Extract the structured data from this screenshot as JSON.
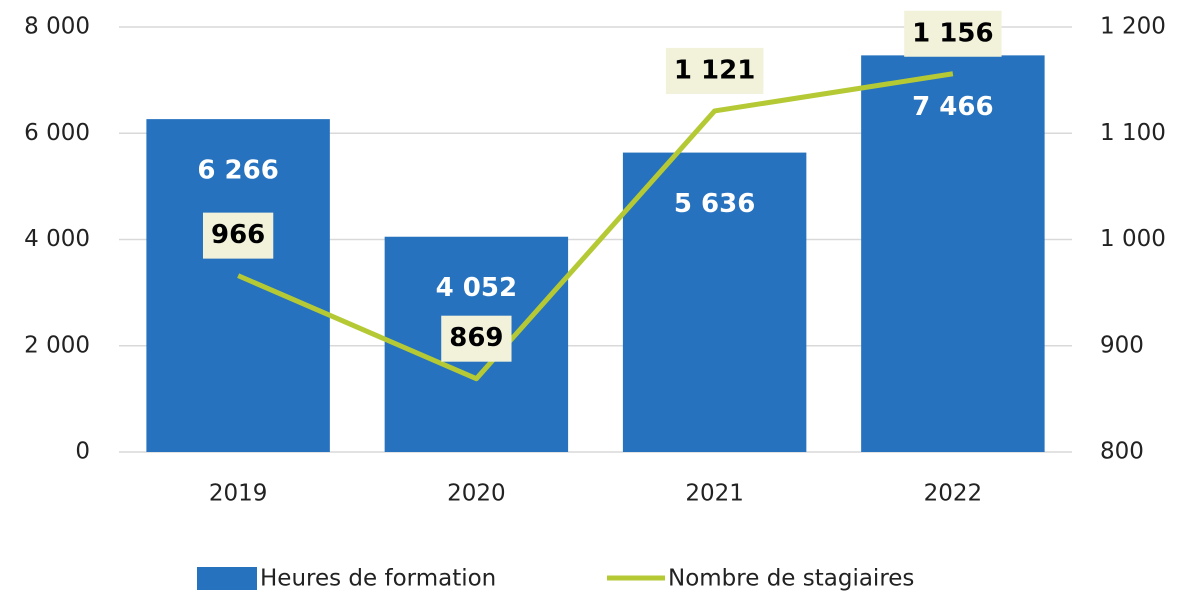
{
  "chart_data": {
    "type": "bar",
    "categories": [
      "2019",
      "2020",
      "2021",
      "2022"
    ],
    "series": [
      {
        "name": "Heures de formation",
        "type": "bar",
        "color": "#2672be",
        "values": [
          6266,
          4052,
          5636,
          7466
        ],
        "value_labels": [
          "6 266",
          "4 052",
          "5 636",
          "7 466"
        ]
      },
      {
        "name": "Nombre de stagiaires",
        "type": "line",
        "axis": "y2",
        "color": "#b5c935",
        "values": [
          966,
          869,
          1121,
          1156
        ],
        "value_labels": [
          "966",
          "869",
          "1 121",
          "1 156"
        ]
      }
    ],
    "ylim": [
      0,
      8000
    ],
    "yticks": [
      0,
      {
        "value": 2000,
        "label": "2 000"
      },
      {
        "value": 4000,
        "label": "4 000"
      },
      {
        "value": 6000,
        "label": "6 000"
      },
      {
        "value": 8000,
        "label": "8 000"
      }
    ],
    "y2lim": [
      800,
      1200
    ],
    "y2ticks": [
      800,
      900,
      {
        "value": 1000,
        "label": "1 000"
      },
      {
        "value": 1100,
        "label": "1 100"
      },
      {
        "value": 1200,
        "label": "1 200"
      }
    ],
    "grid": true,
    "legend": "bottom"
  }
}
